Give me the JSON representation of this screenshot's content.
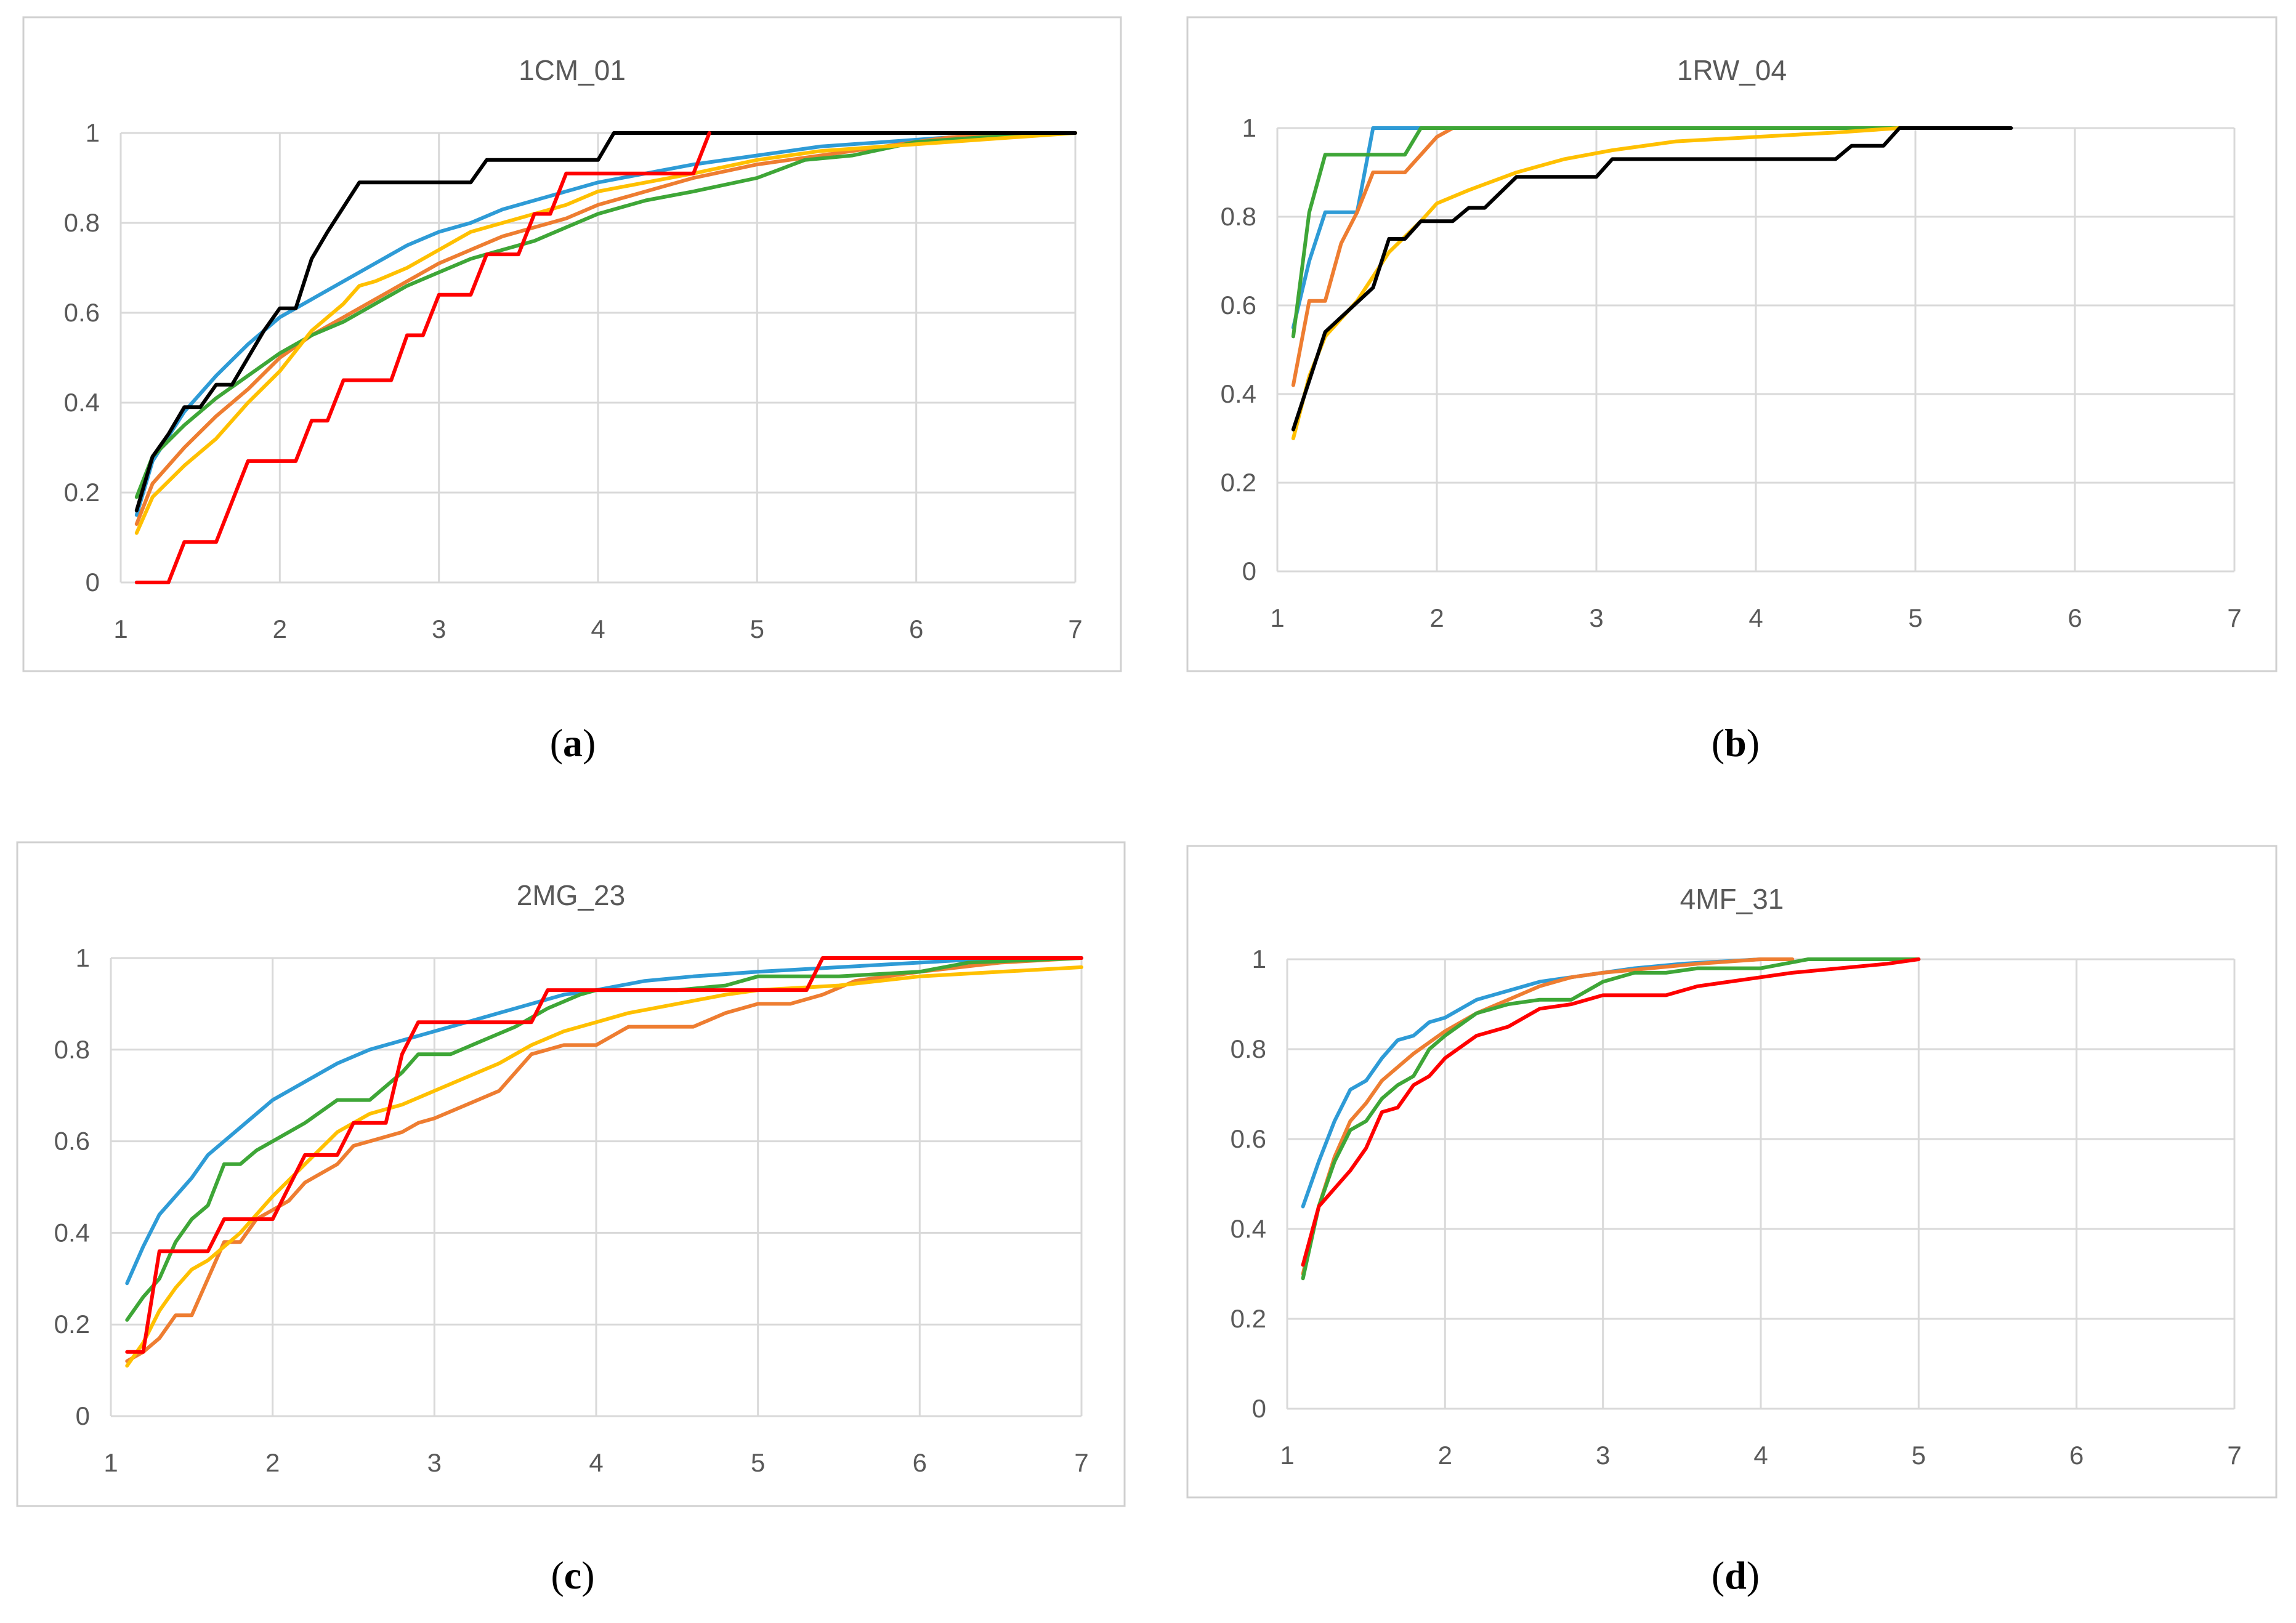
{
  "colors": {
    "blue": "#2E9BD6",
    "orange": "#EE7D31",
    "green": "#3EA637",
    "yellow": "#FFC000",
    "black": "#000000",
    "red": "#FF0000"
  },
  "captions": [
    {
      "open": "(",
      "letter": "a",
      "close": ")"
    },
    {
      "open": "(",
      "letter": "b",
      "close": ")"
    },
    {
      "open": "(",
      "letter": "c",
      "close": ")"
    },
    {
      "open": "(",
      "letter": "d",
      "close": ")"
    }
  ],
  "chart_data": [
    {
      "type": "line",
      "title": "1CM_01",
      "xlabel": "",
      "ylabel": "",
      "xlim": [
        1,
        7
      ],
      "ylim": [
        0,
        1
      ],
      "x_ticks": [
        "1",
        "2",
        "3",
        "4",
        "5",
        "6",
        "7"
      ],
      "y_ticks": [
        "0",
        "0.2",
        "0.4",
        "0.6",
        "0.8",
        "1"
      ],
      "grid": "horizontal",
      "series": [
        {
          "color": "#2E9BD6",
          "x": [
            1.1,
            1.2,
            1.4,
            1.6,
            1.8,
            2.0,
            2.2,
            2.4,
            2.6,
            2.8,
            3.0,
            3.2,
            3.4,
            3.6,
            3.8,
            4.0,
            4.3,
            4.6,
            5.0,
            5.4,
            5.8,
            6.2,
            6.6,
            7.0
          ],
          "y": [
            0.15,
            0.27,
            0.38,
            0.46,
            0.53,
            0.59,
            0.63,
            0.67,
            0.71,
            0.75,
            0.78,
            0.8,
            0.83,
            0.85,
            0.87,
            0.89,
            0.91,
            0.93,
            0.95,
            0.97,
            0.98,
            0.99,
            1.0,
            1.0
          ]
        },
        {
          "color": "#EE7D31",
          "x": [
            1.1,
            1.2,
            1.4,
            1.6,
            1.8,
            2.0,
            2.2,
            2.4,
            2.6,
            2.8,
            3.0,
            3.2,
            3.4,
            3.6,
            3.8,
            4.0,
            4.3,
            4.6,
            5.0,
            5.4,
            5.8,
            6.2,
            6.6,
            7.0
          ],
          "y": [
            0.13,
            0.22,
            0.3,
            0.37,
            0.43,
            0.5,
            0.55,
            0.59,
            0.63,
            0.67,
            0.71,
            0.74,
            0.77,
            0.79,
            0.81,
            0.84,
            0.87,
            0.9,
            0.93,
            0.95,
            0.97,
            0.99,
            1.0,
            1.0
          ]
        },
        {
          "color": "#3EA637",
          "x": [
            1.1,
            1.2,
            1.4,
            1.6,
            1.8,
            2.0,
            2.2,
            2.4,
            2.6,
            2.8,
            3.0,
            3.2,
            3.4,
            3.6,
            3.8,
            4.0,
            4.3,
            4.6,
            5.0,
            5.3,
            5.6,
            6.0,
            6.4,
            7.0
          ],
          "y": [
            0.19,
            0.28,
            0.35,
            0.41,
            0.46,
            0.51,
            0.55,
            0.58,
            0.62,
            0.66,
            0.69,
            0.72,
            0.74,
            0.76,
            0.79,
            0.82,
            0.85,
            0.87,
            0.9,
            0.94,
            0.95,
            0.98,
            0.99,
            1.0
          ]
        },
        {
          "color": "#FFC000",
          "x": [
            1.1,
            1.2,
            1.4,
            1.6,
            1.8,
            2.0,
            2.2,
            2.4,
            2.5,
            2.6,
            2.8,
            3.0,
            3.2,
            3.4,
            3.6,
            3.8,
            4.0,
            4.3,
            4.6,
            5.0,
            5.4,
            5.8,
            6.2,
            6.6,
            7.0
          ],
          "y": [
            0.11,
            0.19,
            0.26,
            0.32,
            0.4,
            0.47,
            0.56,
            0.62,
            0.66,
            0.67,
            0.7,
            0.74,
            0.78,
            0.8,
            0.82,
            0.84,
            0.87,
            0.89,
            0.91,
            0.94,
            0.96,
            0.97,
            0.98,
            0.99,
            1.0
          ]
        },
        {
          "color": "#000000",
          "x": [
            1.1,
            1.2,
            1.3,
            1.4,
            1.5,
            1.6,
            1.7,
            1.8,
            1.9,
            2.0,
            2.1,
            2.2,
            2.3,
            2.5,
            2.7,
            2.9,
            3.1,
            3.2,
            3.3,
            3.5,
            3.7,
            3.9,
            4.0,
            4.1,
            4.5,
            5.0,
            5.5,
            6.0,
            6.5,
            7.0
          ],
          "y": [
            0.16,
            0.28,
            0.33,
            0.39,
            0.39,
            0.44,
            0.44,
            0.5,
            0.56,
            0.61,
            0.61,
            0.72,
            0.78,
            0.89,
            0.89,
            0.89,
            0.89,
            0.89,
            0.94,
            0.94,
            0.94,
            0.94,
            0.94,
            1.0,
            1.0,
            1.0,
            1.0,
            1.0,
            1.0,
            1.0
          ]
        },
        {
          "color": "#FF0000",
          "x": [
            1.1,
            1.3,
            1.4,
            1.6,
            1.8,
            2.1,
            2.2,
            2.3,
            2.4,
            2.7,
            2.8,
            2.9,
            3.0,
            3.2,
            3.3,
            3.5,
            3.6,
            3.7,
            3.8,
            4.1,
            4.5,
            4.6,
            4.7
          ],
          "y": [
            0.0,
            0.0,
            0.09,
            0.09,
            0.27,
            0.27,
            0.36,
            0.36,
            0.45,
            0.45,
            0.55,
            0.55,
            0.64,
            0.64,
            0.73,
            0.73,
            0.82,
            0.82,
            0.91,
            0.91,
            0.91,
            0.91,
            1.0
          ]
        }
      ]
    },
    {
      "type": "line",
      "title": "1RW_04",
      "xlabel": "",
      "ylabel": "",
      "xlim": [
        1,
        7
      ],
      "ylim": [
        0,
        1
      ],
      "x_ticks": [
        "1",
        "2",
        "3",
        "4",
        "5",
        "6",
        "7"
      ],
      "y_ticks": [
        "0",
        "0.2",
        "0.4",
        "0.6",
        "0.8",
        "1"
      ],
      "grid": "horizontal",
      "series": [
        {
          "color": "#2E9BD6",
          "x": [
            1.1,
            1.2,
            1.3,
            1.5,
            1.6,
            1.7,
            2.0
          ],
          "y": [
            0.55,
            0.7,
            0.81,
            0.81,
            1.0,
            1.0,
            1.0
          ]
        },
        {
          "color": "#EE7D31",
          "x": [
            1.1,
            1.2,
            1.3,
            1.4,
            1.5,
            1.6,
            1.8,
            1.9,
            2.0,
            2.1
          ],
          "y": [
            0.42,
            0.61,
            0.61,
            0.74,
            0.81,
            0.9,
            0.9,
            0.94,
            0.98,
            1.0
          ]
        },
        {
          "color": "#3EA637",
          "x": [
            1.1,
            1.2,
            1.3,
            1.5,
            1.8,
            1.9,
            2.0,
            3.0,
            4.0,
            5.0
          ],
          "y": [
            0.53,
            0.81,
            0.94,
            0.94,
            0.94,
            1.0,
            1.0,
            1.0,
            1.0,
            1.0
          ]
        },
        {
          "color": "#FFC000",
          "x": [
            1.1,
            1.2,
            1.3,
            1.5,
            1.7,
            1.9,
            2.0,
            2.2,
            2.5,
            2.8,
            3.1,
            3.5,
            4.0,
            4.5,
            4.9,
            5.2
          ],
          "y": [
            0.3,
            0.44,
            0.53,
            0.61,
            0.72,
            0.79,
            0.83,
            0.86,
            0.9,
            0.93,
            0.95,
            0.97,
            0.98,
            0.99,
            1.0,
            1.0
          ]
        },
        {
          "color": "#000000",
          "x": [
            1.1,
            1.3,
            1.6,
            1.7,
            1.8,
            1.9,
            2.1,
            2.2,
            2.3,
            2.5,
            2.7,
            3.0,
            3.1,
            3.5,
            4.0,
            4.5,
            4.6,
            4.8,
            4.9,
            5.2,
            5.6
          ],
          "y": [
            0.32,
            0.54,
            0.64,
            0.75,
            0.75,
            0.79,
            0.79,
            0.82,
            0.82,
            0.89,
            0.89,
            0.89,
            0.93,
            0.93,
            0.93,
            0.93,
            0.96,
            0.96,
            1.0,
            1.0,
            1.0
          ]
        }
      ]
    },
    {
      "type": "line",
      "title": "2MG_23",
      "xlabel": "",
      "ylabel": "",
      "xlim": [
        1,
        7
      ],
      "ylim": [
        0,
        1
      ],
      "x_ticks": [
        "1",
        "2",
        "3",
        "4",
        "5",
        "6",
        "7"
      ],
      "y_ticks": [
        "0",
        "0.2",
        "0.4",
        "0.6",
        "0.8",
        "1"
      ],
      "grid": "horizontal",
      "series": [
        {
          "color": "#2E9BD6",
          "x": [
            1.1,
            1.2,
            1.3,
            1.5,
            1.6,
            1.8,
            2.0,
            2.2,
            2.4,
            2.6,
            2.8,
            3.0,
            3.2,
            3.4,
            3.6,
            3.8,
            4.0,
            4.3,
            4.6,
            5.0,
            5.5,
            6.0,
            6.5,
            7.0
          ],
          "y": [
            0.29,
            0.37,
            0.44,
            0.52,
            0.57,
            0.63,
            0.69,
            0.73,
            0.77,
            0.8,
            0.82,
            0.84,
            0.86,
            0.88,
            0.9,
            0.92,
            0.93,
            0.95,
            0.96,
            0.97,
            0.98,
            0.99,
            1.0,
            1.0
          ]
        },
        {
          "color": "#EE7D31",
          "x": [
            1.1,
            1.2,
            1.3,
            1.4,
            1.5,
            1.6,
            1.7,
            1.8,
            1.9,
            2.0,
            2.1,
            2.2,
            2.4,
            2.5,
            2.6,
            2.8,
            2.9,
            3.0,
            3.2,
            3.4,
            3.6,
            3.8,
            4.0,
            4.2,
            4.6,
            4.8,
            5.0,
            5.2,
            5.4,
            5.6,
            6.0,
            6.5,
            7.0
          ],
          "y": [
            0.12,
            0.14,
            0.17,
            0.22,
            0.22,
            0.3,
            0.38,
            0.38,
            0.43,
            0.45,
            0.47,
            0.51,
            0.55,
            0.59,
            0.6,
            0.62,
            0.64,
            0.65,
            0.68,
            0.71,
            0.79,
            0.81,
            0.81,
            0.85,
            0.85,
            0.88,
            0.9,
            0.9,
            0.92,
            0.95,
            0.97,
            0.99,
            1.0
          ]
        },
        {
          "color": "#3EA637",
          "x": [
            1.1,
            1.2,
            1.3,
            1.4,
            1.5,
            1.6,
            1.7,
            1.8,
            1.9,
            2.0,
            2.2,
            2.4,
            2.6,
            2.7,
            2.8,
            2.9,
            3.1,
            3.3,
            3.5,
            3.7,
            3.9,
            4.0,
            4.5,
            4.8,
            5.0,
            5.5,
            6.0,
            6.3,
            7.0
          ],
          "y": [
            0.21,
            0.26,
            0.3,
            0.38,
            0.43,
            0.46,
            0.55,
            0.55,
            0.58,
            0.6,
            0.64,
            0.69,
            0.69,
            0.72,
            0.75,
            0.79,
            0.79,
            0.82,
            0.85,
            0.89,
            0.92,
            0.93,
            0.93,
            0.94,
            0.96,
            0.96,
            0.97,
            0.99,
            1.0
          ]
        },
        {
          "color": "#FFC000",
          "x": [
            1.1,
            1.2,
            1.3,
            1.4,
            1.5,
            1.6,
            1.8,
            2.0,
            2.2,
            2.4,
            2.6,
            2.8,
            3.0,
            3.2,
            3.4,
            3.6,
            3.8,
            4.0,
            4.2,
            4.5,
            4.8,
            5.0,
            5.5,
            6.0,
            6.5,
            7.0
          ],
          "y": [
            0.11,
            0.16,
            0.23,
            0.28,
            0.32,
            0.34,
            0.4,
            0.48,
            0.55,
            0.62,
            0.66,
            0.68,
            0.71,
            0.74,
            0.77,
            0.81,
            0.84,
            0.86,
            0.88,
            0.9,
            0.92,
            0.93,
            0.94,
            0.96,
            0.97,
            0.98
          ]
        },
        {
          "color": "#FF0000",
          "x": [
            1.1,
            1.2,
            1.3,
            1.6,
            1.7,
            2.0,
            2.1,
            2.2,
            2.4,
            2.5,
            2.7,
            2.8,
            2.9,
            3.4,
            3.6,
            3.7,
            4.0,
            4.5,
            5.0,
            5.3,
            5.4,
            6.0,
            6.5,
            7.0
          ],
          "y": [
            0.14,
            0.14,
            0.36,
            0.36,
            0.43,
            0.43,
            0.5,
            0.57,
            0.57,
            0.64,
            0.64,
            0.79,
            0.86,
            0.86,
            0.86,
            0.93,
            0.93,
            0.93,
            0.93,
            0.93,
            1.0,
            1.0,
            1.0,
            1.0
          ]
        }
      ]
    },
    {
      "type": "line",
      "title": "4MF_31",
      "xlabel": "",
      "ylabel": "",
      "xlim": [
        1,
        7
      ],
      "ylim": [
        0,
        1
      ],
      "x_ticks": [
        "1",
        "2",
        "3",
        "4",
        "5",
        "6",
        "7"
      ],
      "y_ticks": [
        "0",
        "0.2",
        "0.4",
        "0.6",
        "0.8",
        "1"
      ],
      "grid": "horizontal",
      "series": [
        {
          "color": "#2E9BD6",
          "x": [
            1.1,
            1.2,
            1.3,
            1.4,
            1.5,
            1.6,
            1.7,
            1.8,
            1.9,
            2.0,
            2.2,
            2.4,
            2.6,
            2.8,
            3.0,
            3.2,
            3.5,
            4.0
          ],
          "y": [
            0.45,
            0.55,
            0.64,
            0.71,
            0.73,
            0.78,
            0.82,
            0.83,
            0.86,
            0.87,
            0.91,
            0.93,
            0.95,
            0.96,
            0.97,
            0.98,
            0.99,
            1.0
          ]
        },
        {
          "color": "#EE7D31",
          "x": [
            1.1,
            1.2,
            1.3,
            1.4,
            1.5,
            1.6,
            1.8,
            2.0,
            2.2,
            2.4,
            2.6,
            2.8,
            3.0,
            3.3,
            3.6,
            4.0,
            4.2
          ],
          "y": [
            0.3,
            0.45,
            0.56,
            0.64,
            0.68,
            0.73,
            0.79,
            0.84,
            0.88,
            0.91,
            0.94,
            0.96,
            0.97,
            0.98,
            0.99,
            1.0,
            1.0
          ]
        },
        {
          "color": "#3EA637",
          "x": [
            1.1,
            1.2,
            1.3,
            1.4,
            1.5,
            1.6,
            1.7,
            1.8,
            1.9,
            2.0,
            2.2,
            2.4,
            2.6,
            2.8,
            3.0,
            3.2,
            3.4,
            3.6,
            4.0,
            4.3,
            5.0
          ],
          "y": [
            0.29,
            0.45,
            0.55,
            0.62,
            0.64,
            0.69,
            0.72,
            0.74,
            0.8,
            0.83,
            0.88,
            0.9,
            0.91,
            0.91,
            0.95,
            0.97,
            0.97,
            0.98,
            0.98,
            1.0,
            1.0
          ]
        },
        {
          "color": "#FF0000",
          "x": [
            1.1,
            1.2,
            1.3,
            1.4,
            1.5,
            1.6,
            1.7,
            1.8,
            1.9,
            2.0,
            2.2,
            2.4,
            2.6,
            2.8,
            3.0,
            3.4,
            3.6,
            3.8,
            4.0,
            4.2,
            4.5,
            4.8,
            5.0
          ],
          "y": [
            0.32,
            0.45,
            0.49,
            0.53,
            0.58,
            0.66,
            0.67,
            0.72,
            0.74,
            0.78,
            0.83,
            0.85,
            0.89,
            0.9,
            0.92,
            0.92,
            0.94,
            0.95,
            0.96,
            0.97,
            0.98,
            0.99,
            1.0
          ]
        }
      ]
    }
  ]
}
